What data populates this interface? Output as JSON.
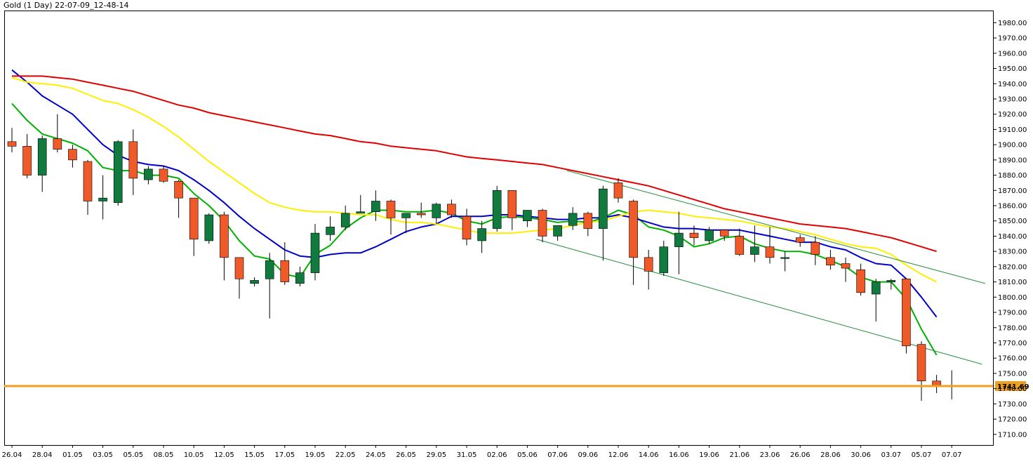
{
  "chart_data": {
    "type": "candlestick",
    "title": "Gold (1 Day) 22-07-09_12-48-14",
    "ylim": [
      1703,
      1988
    ],
    "y_ticks": [
      1710,
      1720,
      1730,
      1740,
      1750,
      1760,
      1770,
      1780,
      1790,
      1800,
      1810,
      1820,
      1830,
      1840,
      1850,
      1860,
      1870,
      1880,
      1890,
      1900,
      1910,
      1920,
      1930,
      1940,
      1950,
      1960,
      1970,
      1980
    ],
    "y_tick_labels": [
      "1710.00",
      "1720.00",
      "1730.00",
      "1740.00",
      "1750.00",
      "1760.00",
      "1770.00",
      "1780.00",
      "1790.00",
      "1800.00",
      "1810.00",
      "1820.00",
      "1830.00",
      "1840.00",
      "1850.00",
      "1860.00",
      "1870.00",
      "1880.00",
      "1890.00",
      "1900.00",
      "1910.00",
      "1920.00",
      "1930.00",
      "1940.00",
      "1950.00",
      "1960.00",
      "1970.00",
      "1980.00"
    ],
    "x_tick_labels": [
      "26.04",
      "28.04",
      "01.05",
      "03.05",
      "05.05",
      "08.05",
      "10.05",
      "12.05",
      "15.05",
      "17.05",
      "19.05",
      "22.05",
      "24.05",
      "26.05",
      "29.05",
      "31.05",
      "02.06",
      "05.06",
      "07.06",
      "09.06",
      "12.06",
      "14.06",
      "16.06",
      "19.06",
      "21.06",
      "23.06",
      "26.06",
      "28.06",
      "30.06",
      "03.07",
      "05.07",
      "07.07"
    ],
    "x_tick_bar_index": [
      0,
      2,
      4,
      6,
      8,
      10,
      12,
      14,
      16,
      18,
      20,
      22,
      24,
      26,
      28,
      30,
      32,
      34,
      36,
      38,
      40,
      42,
      44,
      46,
      48,
      50,
      52,
      54,
      56,
      58,
      60,
      62
    ],
    "up_color": "#117a3e",
    "down_color": "#f05a28",
    "grid": false,
    "candles": [
      {
        "o": 1902,
        "h": 1911,
        "l": 1895,
        "c": 1899
      },
      {
        "o": 1899,
        "h": 1907,
        "l": 1878,
        "c": 1880
      },
      {
        "o": 1880,
        "h": 1906,
        "l": 1869,
        "c": 1904
      },
      {
        "o": 1904,
        "h": 1920,
        "l": 1895,
        "c": 1897
      },
      {
        "o": 1897,
        "h": 1900,
        "l": 1885,
        "c": 1890
      },
      {
        "o": 1889,
        "h": 1890,
        "l": 1854,
        "c": 1863
      },
      {
        "o": 1863,
        "h": 1880,
        "l": 1851,
        "c": 1865
      },
      {
        "o": 1862,
        "h": 1903,
        "l": 1860,
        "c": 1902
      },
      {
        "o": 1902,
        "h": 1910,
        "l": 1867,
        "c": 1878
      },
      {
        "o": 1877,
        "h": 1886,
        "l": 1874,
        "c": 1884
      },
      {
        "o": 1884,
        "h": 1886,
        "l": 1875,
        "c": 1876
      },
      {
        "o": 1876,
        "h": 1877,
        "l": 1852,
        "c": 1865
      },
      {
        "o": 1865,
        "h": 1865,
        "l": 1827,
        "c": 1838
      },
      {
        "o": 1837,
        "h": 1855,
        "l": 1835,
        "c": 1854
      },
      {
        "o": 1854,
        "h": 1856,
        "l": 1811,
        "c": 1826
      },
      {
        "o": 1826,
        "h": 1826,
        "l": 1799,
        "c": 1812
      },
      {
        "o": 1809,
        "h": 1813,
        "l": 1807,
        "c": 1811
      },
      {
        "o": 1812,
        "h": 1829,
        "l": 1786,
        "c": 1824
      },
      {
        "o": 1824,
        "h": 1836,
        "l": 1808,
        "c": 1810
      },
      {
        "o": 1809,
        "h": 1820,
        "l": 1807,
        "c": 1816
      },
      {
        "o": 1816,
        "h": 1848,
        "l": 1811,
        "c": 1842
      },
      {
        "o": 1841,
        "h": 1853,
        "l": 1837,
        "c": 1846
      },
      {
        "o": 1846,
        "h": 1860,
        "l": 1844,
        "c": 1855
      },
      {
        "o": 1855,
        "h": 1867,
        "l": 1855,
        "c": 1856
      },
      {
        "o": 1856,
        "h": 1870,
        "l": 1850,
        "c": 1863
      },
      {
        "o": 1863,
        "h": 1864,
        "l": 1841,
        "c": 1852
      },
      {
        "o": 1852,
        "h": 1855,
        "l": 1842,
        "c": 1855
      },
      {
        "o": 1855,
        "h": 1862,
        "l": 1852,
        "c": 1854
      },
      {
        "o": 1852,
        "h": 1862,
        "l": 1848,
        "c": 1861
      },
      {
        "o": 1861,
        "h": 1864,
        "l": 1852,
        "c": 1854
      },
      {
        "o": 1853,
        "h": 1858,
        "l": 1834,
        "c": 1838
      },
      {
        "o": 1837,
        "h": 1850,
        "l": 1829,
        "c": 1845
      },
      {
        "o": 1845,
        "h": 1873,
        "l": 1843,
        "c": 1870
      },
      {
        "o": 1870,
        "h": 1870,
        "l": 1844,
        "c": 1852
      },
      {
        "o": 1850,
        "h": 1857,
        "l": 1846,
        "c": 1857
      },
      {
        "o": 1857,
        "h": 1858,
        "l": 1836,
        "c": 1840
      },
      {
        "o": 1840,
        "h": 1847,
        "l": 1837,
        "c": 1847
      },
      {
        "o": 1847,
        "h": 1859,
        "l": 1844,
        "c": 1855
      },
      {
        "o": 1855,
        "h": 1856,
        "l": 1840,
        "c": 1845
      },
      {
        "o": 1845,
        "h": 1873,
        "l": 1824,
        "c": 1871
      },
      {
        "o": 1875,
        "h": 1878,
        "l": 1862,
        "c": 1865
      },
      {
        "o": 1863,
        "h": 1864,
        "l": 1808,
        "c": 1826
      },
      {
        "o": 1826,
        "h": 1831,
        "l": 1805,
        "c": 1817
      },
      {
        "o": 1816,
        "h": 1837,
        "l": 1814,
        "c": 1833
      },
      {
        "o": 1833,
        "h": 1856,
        "l": 1815,
        "c": 1842
      },
      {
        "o": 1842,
        "h": 1847,
        "l": 1834,
        "c": 1839
      },
      {
        "o": 1837,
        "h": 1846,
        "l": 1835,
        "c": 1844
      },
      {
        "o": 1844,
        "h": 1844,
        "l": 1837,
        "c": 1840
      },
      {
        "o": 1840,
        "h": 1845,
        "l": 1827,
        "c": 1828
      },
      {
        "o": 1828,
        "h": 1847,
        "l": 1823,
        "c": 1833
      },
      {
        "o": 1833,
        "h": 1846,
        "l": 1822,
        "c": 1826
      },
      {
        "o": 1826,
        "h": 1830,
        "l": 1817,
        "c": 1826
      },
      {
        "o": 1839,
        "h": 1841,
        "l": 1833,
        "c": 1836
      },
      {
        "o": 1836,
        "h": 1840,
        "l": 1821,
        "c": 1828
      },
      {
        "o": 1826,
        "h": 1831,
        "l": 1818,
        "c": 1821
      },
      {
        "o": 1822,
        "h": 1826,
        "l": 1810,
        "c": 1819
      },
      {
        "o": 1818,
        "h": 1822,
        "l": 1801,
        "c": 1803
      },
      {
        "o": 1802,
        "h": 1812,
        "l": 1784,
        "c": 1810
      },
      {
        "o": 1810,
        "h": 1812,
        "l": 1805,
        "c": 1811
      },
      {
        "o": 1812,
        "h": 1812,
        "l": 1763,
        "c": 1768
      },
      {
        "o": 1769,
        "h": 1771,
        "l": 1732,
        "c": 1745
      },
      {
        "o": 1745,
        "h": 1749,
        "l": 1737,
        "c": 1742
      },
      {
        "o": 1742,
        "h": 1752,
        "l": 1733,
        "c": 1742
      }
    ],
    "indicator_lines": [
      {
        "color": "#00b000",
        "values": [
          1927,
          1916,
          1907,
          1904,
          1901,
          1896,
          1885,
          1883,
          1883,
          1880,
          1880,
          1878,
          1868,
          1860,
          1850,
          1837,
          1827,
          1825,
          1815,
          1813,
          1828,
          1834,
          1845,
          1852,
          1857,
          1857,
          1856,
          1856,
          1857,
          1855,
          1850,
          1848,
          1852,
          1853,
          1852,
          1851,
          1849,
          1850,
          1849,
          1852,
          1857,
          1854,
          1846,
          1844,
          1840,
          1833,
          1835,
          1839,
          1840,
          1835,
          1832,
          1830,
          1830,
          1828,
          1824,
          1820,
          1813,
          1810,
          1810,
          1799,
          1779,
          1762
        ]
      },
      {
        "color": "#0000c8",
        "values": [
          1949,
          1941,
          1932,
          1926,
          1920,
          1910,
          1900,
          1893,
          1889,
          1887,
          1886,
          1883,
          1877,
          1870,
          1862,
          1853,
          1845,
          1838,
          1831,
          1827,
          1826,
          1828,
          1829,
          1829,
          1833,
          1838,
          1843,
          1846,
          1848,
          1853,
          1853,
          1853,
          1854,
          1854,
          1853,
          1852,
          1851,
          1851,
          1852,
          1852,
          1854,
          1852,
          1849,
          1846,
          1845,
          1845,
          1844,
          1844,
          1844,
          1842,
          1840,
          1838,
          1836,
          1836,
          1833,
          1831,
          1826,
          1822,
          1821,
          1812,
          1800,
          1787
        ]
      },
      {
        "color": "#ffee00",
        "values": [
          1944,
          1941,
          1940,
          1939,
          1937,
          1933,
          1929,
          1927,
          1923,
          1918,
          1912,
          1905,
          1897,
          1889,
          1882,
          1875,
          1868,
          1862,
          1859,
          1857,
          1856,
          1856,
          1855,
          1854,
          1854,
          1851,
          1849,
          1849,
          1848,
          1846,
          1844,
          1842,
          1842,
          1842,
          1843,
          1844,
          1845,
          1847,
          1849,
          1850,
          1853,
          1856,
          1857,
          1856,
          1855,
          1853,
          1852,
          1851,
          1850,
          1848,
          1846,
          1845,
          1843,
          1841,
          1838,
          1835,
          1833,
          1832,
          1828,
          1821,
          1815,
          1810
        ]
      },
      {
        "color": "#e00000",
        "values": [
          1945,
          1945,
          1945,
          1944,
          1943,
          1941,
          1939,
          1937,
          1935,
          1932,
          1929,
          1926,
          1924,
          1921,
          1919,
          1917,
          1915,
          1913,
          1911,
          1909,
          1907,
          1906,
          1904,
          1902,
          1901,
          1899,
          1898,
          1897,
          1896,
          1894,
          1892,
          1891,
          1890,
          1889,
          1888,
          1887,
          1885,
          1883,
          1881,
          1879,
          1877,
          1875,
          1873,
          1870,
          1867,
          1864,
          1861,
          1858,
          1856,
          1854,
          1852,
          1850,
          1848,
          1847,
          1846,
          1845,
          1843,
          1841,
          1839,
          1836,
          1833,
          1830
        ]
      }
    ],
    "channel_lines": [
      {
        "color": "#1f8a3a",
        "from": {
          "bar": 36.6,
          "value": 1883
        },
        "to": {
          "bar": 64.2,
          "value": 1809
        }
      },
      {
        "color": "#1f8a3a",
        "from": {
          "bar": 34.6,
          "value": 1838
        },
        "to": {
          "bar": 64.0,
          "value": 1756
        }
      }
    ],
    "current_price": {
      "value": 1741.69,
      "label": "1741.69",
      "color": "#f0a020"
    }
  }
}
